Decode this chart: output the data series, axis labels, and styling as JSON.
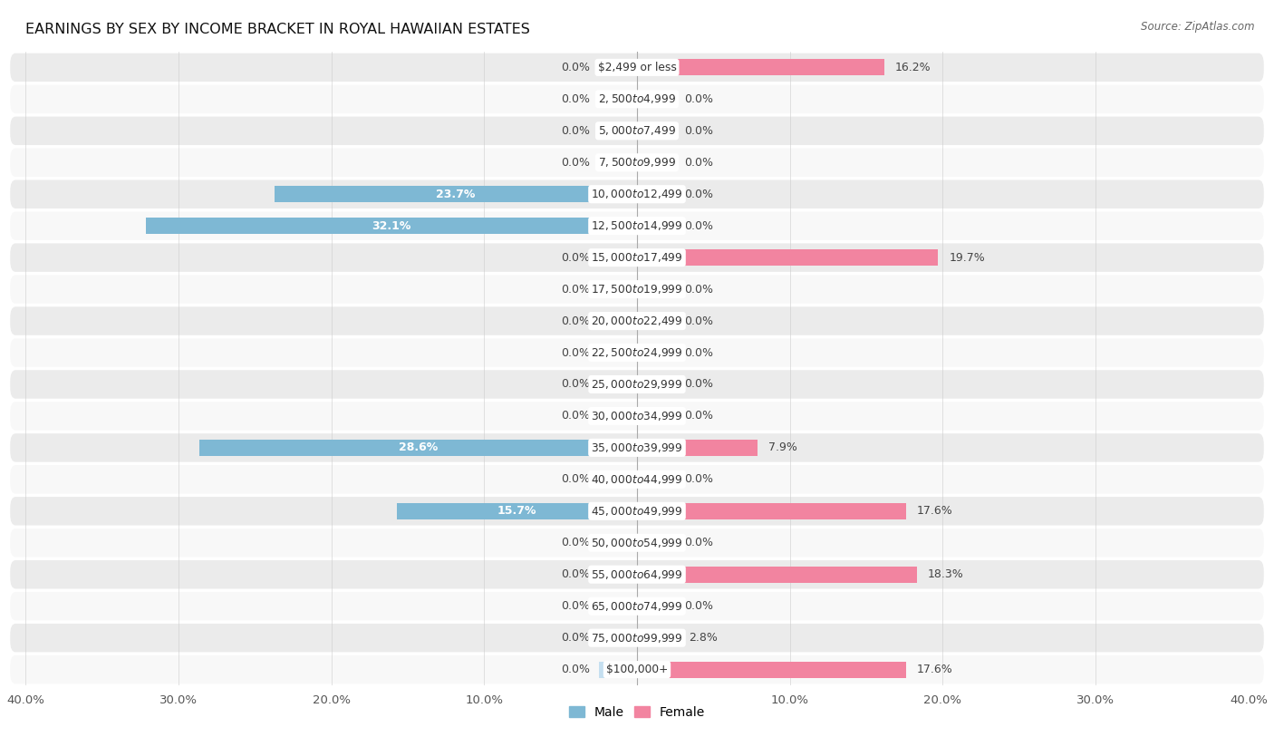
{
  "title": "EARNINGS BY SEX BY INCOME BRACKET IN ROYAL HAWAIIAN ESTATES",
  "source": "Source: ZipAtlas.com",
  "categories": [
    "$2,499 or less",
    "$2,500 to $4,999",
    "$5,000 to $7,499",
    "$7,500 to $9,999",
    "$10,000 to $12,499",
    "$12,500 to $14,999",
    "$15,000 to $17,499",
    "$17,500 to $19,999",
    "$20,000 to $22,499",
    "$22,500 to $24,999",
    "$25,000 to $29,999",
    "$30,000 to $34,999",
    "$35,000 to $39,999",
    "$40,000 to $44,999",
    "$45,000 to $49,999",
    "$50,000 to $54,999",
    "$55,000 to $64,999",
    "$65,000 to $74,999",
    "$75,000 to $99,999",
    "$100,000+"
  ],
  "male": [
    0.0,
    0.0,
    0.0,
    0.0,
    23.7,
    32.1,
    0.0,
    0.0,
    0.0,
    0.0,
    0.0,
    0.0,
    28.6,
    0.0,
    15.7,
    0.0,
    0.0,
    0.0,
    0.0,
    0.0
  ],
  "female": [
    16.2,
    0.0,
    0.0,
    0.0,
    0.0,
    0.0,
    19.7,
    0.0,
    0.0,
    0.0,
    0.0,
    0.0,
    7.9,
    0.0,
    17.6,
    0.0,
    18.3,
    0.0,
    2.8,
    17.6
  ],
  "male_color": "#7EB8D4",
  "female_color": "#F284A0",
  "male_color_light": "#C5DFF0",
  "female_color_light": "#F5B8C8",
  "bg_color_odd": "#EBEBEB",
  "bg_color_even": "#F8F8F8",
  "xlim": 40.0,
  "bar_height": 0.52,
  "title_fontsize": 11.5,
  "tick_fontsize": 9.5,
  "value_fontsize": 9,
  "category_fontsize": 8.8,
  "label_threshold": 5.0
}
